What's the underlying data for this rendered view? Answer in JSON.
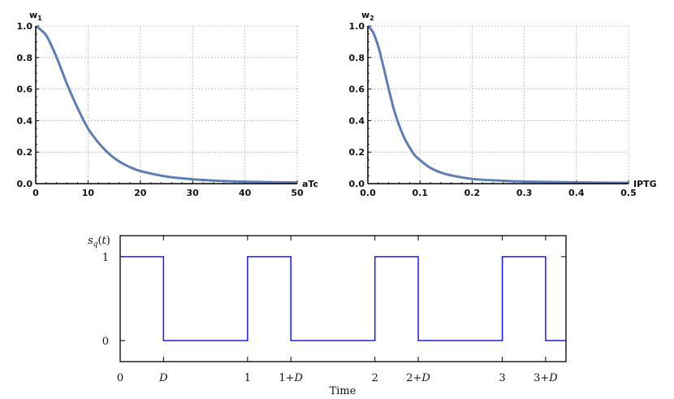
{
  "chart_data": [
    {
      "type": "line",
      "ylabel_main": "w",
      "ylabel_sub": "1",
      "xlabel": "aTc",
      "xlim": [
        0,
        50
      ],
      "ylim": [
        0,
        1
      ],
      "x_ticks": [
        "0",
        "10",
        "20",
        "30",
        "40",
        "50"
      ],
      "y_ticks": [
        "0.0",
        "0.2",
        "0.4",
        "0.6",
        "0.8",
        "1.0"
      ],
      "grid": true,
      "color": "#5b7fb5",
      "x": [
        0,
        2,
        4,
        6,
        8,
        10,
        12,
        14,
        16,
        18,
        20,
        25,
        30,
        35,
        40,
        45,
        50
      ],
      "y": [
        1.0,
        0.94,
        0.8,
        0.63,
        0.48,
        0.35,
        0.26,
        0.19,
        0.14,
        0.105,
        0.08,
        0.045,
        0.028,
        0.018,
        0.012,
        0.009,
        0.007
      ]
    },
    {
      "type": "line",
      "ylabel_main": "w",
      "ylabel_sub": "2",
      "xlabel": "IPTG",
      "xlim": [
        0,
        0.5
      ],
      "ylim": [
        0,
        1
      ],
      "x_ticks": [
        "0.0",
        "0.1",
        "0.2",
        "0.3",
        "0.4",
        "0.5"
      ],
      "y_ticks": [
        "0.0",
        "0.2",
        "0.4",
        "0.6",
        "0.8",
        "1.0"
      ],
      "grid": true,
      "color": "#5b7fb5",
      "x": [
        0,
        0.01,
        0.02,
        0.03,
        0.04,
        0.05,
        0.06,
        0.07,
        0.08,
        0.09,
        0.1,
        0.12,
        0.15,
        0.2,
        0.25,
        0.3,
        0.4,
        0.5
      ],
      "y": [
        1.0,
        0.96,
        0.87,
        0.74,
        0.6,
        0.47,
        0.37,
        0.29,
        0.23,
        0.18,
        0.15,
        0.1,
        0.06,
        0.03,
        0.02,
        0.013,
        0.008,
        0.005
      ]
    },
    {
      "type": "line",
      "ylabel": "s_q(t)",
      "xlabel": "Time",
      "x_ticks": [
        "0",
        "D",
        "1",
        "1+D",
        "2",
        "2+D",
        "3",
        "3+D"
      ],
      "x_tick_values": [
        0,
        0.34,
        1,
        1.34,
        2,
        2.34,
        3,
        3.34
      ],
      "y_ticks": [
        "0",
        "1"
      ],
      "xlim": [
        0,
        3.5
      ],
      "ylim": [
        -0.25,
        1.25
      ],
      "grid": false,
      "color": "#1a1aff",
      "x": [
        0,
        0.34,
        0.34,
        1,
        1,
        1.34,
        1.34,
        2,
        2,
        2.34,
        2.34,
        3,
        3,
        3.34,
        3.34,
        3.5
      ],
      "y": [
        1,
        1,
        0,
        0,
        1,
        1,
        0,
        0,
        1,
        1,
        0,
        0,
        1,
        1,
        0,
        0
      ]
    }
  ]
}
